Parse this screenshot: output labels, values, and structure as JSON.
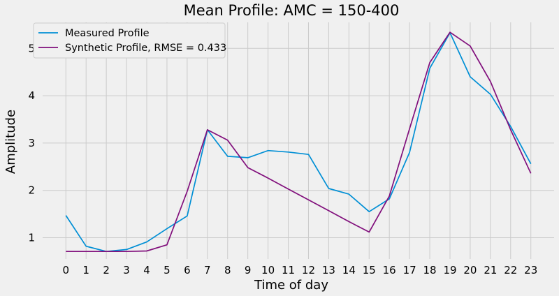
{
  "chart_data": {
    "type": "line",
    "title": "Mean Profile: AMC = 150-400",
    "xlabel": "Time of day",
    "ylabel": "Amplitude",
    "x": [
      0,
      1,
      2,
      3,
      4,
      5,
      6,
      7,
      8,
      9,
      10,
      11,
      12,
      13,
      14,
      15,
      16,
      17,
      18,
      19,
      20,
      21,
      22,
      23
    ],
    "ylim": [
      0.55,
      5.55
    ],
    "yticks": [
      1,
      2,
      3,
      4,
      5
    ],
    "grid": true,
    "legend_position": "top-left",
    "series": [
      {
        "name": "Measured Profile",
        "color": "#008fd5",
        "values": [
          1.47,
          0.82,
          0.71,
          0.75,
          0.91,
          1.19,
          1.46,
          3.28,
          2.72,
          2.69,
          2.84,
          2.81,
          2.76,
          2.04,
          1.92,
          1.55,
          1.82,
          2.8,
          4.58,
          5.33,
          4.4,
          4.03,
          3.35,
          2.56
        ]
      },
      {
        "name": "Synthetic Profile, RMSE = 0.433",
        "color": "#810f7c",
        "values": [
          0.71,
          0.71,
          0.71,
          0.71,
          0.72,
          0.85,
          1.98,
          3.28,
          3.06,
          2.48,
          2.26,
          2.03,
          1.8,
          1.57,
          1.34,
          1.12,
          1.88,
          3.3,
          4.7,
          5.34,
          5.05,
          4.3,
          3.28,
          2.36
        ]
      }
    ]
  }
}
